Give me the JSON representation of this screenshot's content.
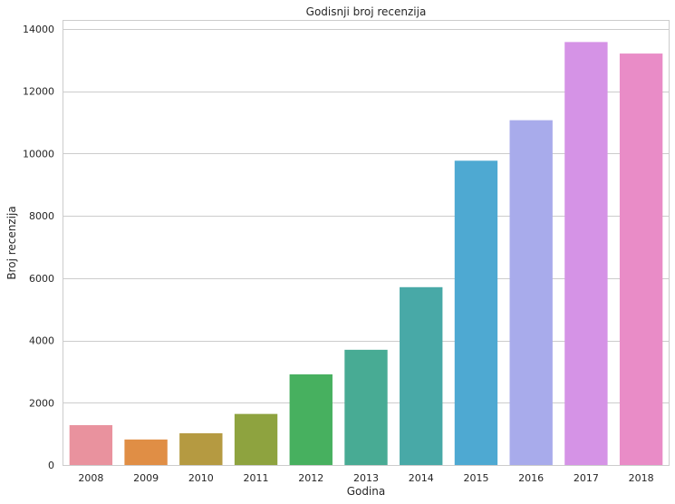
{
  "chart_data": {
    "type": "bar",
    "title": "Godisnji broj recenzija",
    "xlabel": "Godina",
    "ylabel": "Broj recenzija",
    "categories": [
      "2008",
      "2009",
      "2010",
      "2011",
      "2012",
      "2013",
      "2014",
      "2015",
      "2016",
      "2017",
      "2018"
    ],
    "values": [
      1280,
      820,
      1020,
      1640,
      2910,
      3700,
      5710,
      9770,
      11070,
      13580,
      13210
    ],
    "colors": [
      "#e9929e",
      "#e08e45",
      "#b59a41",
      "#8ea33f",
      "#47b05f",
      "#48ab94",
      "#48a9a7",
      "#4ea9d2",
      "#a8abeb",
      "#d593e6",
      "#e98cc7"
    ],
    "yticks": [
      0,
      2000,
      4000,
      6000,
      8000,
      10000,
      12000,
      14000
    ],
    "ylim": [
      0,
      14260
    ],
    "grid": true,
    "legend": "none"
  }
}
